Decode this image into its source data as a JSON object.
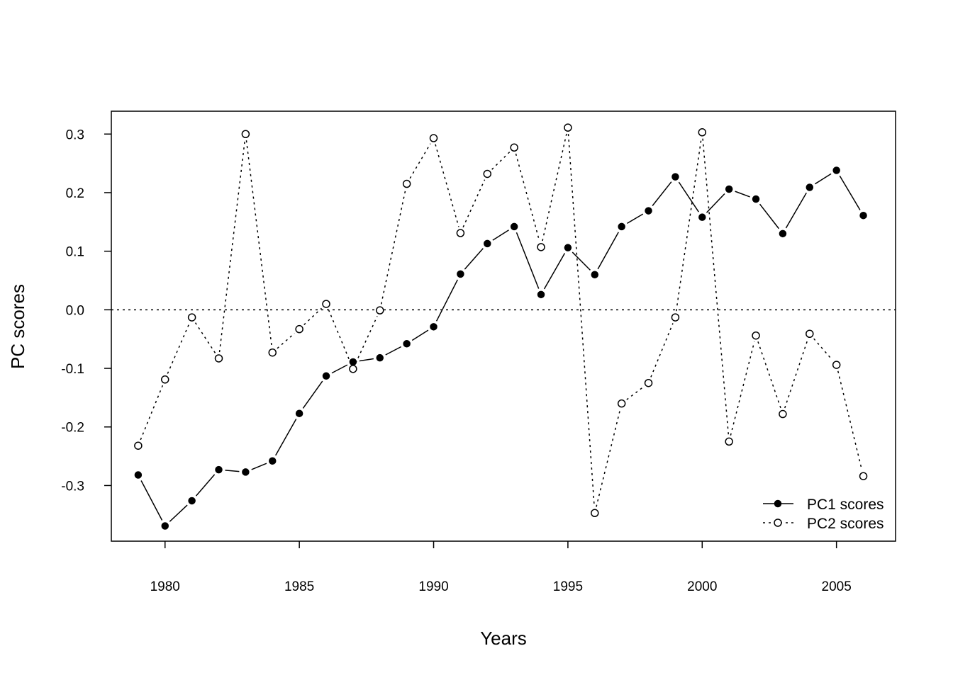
{
  "chart_data": {
    "type": "line",
    "xlabel": "Years",
    "ylabel": "PC scores",
    "xlim": [
      1978,
      2007.2
    ],
    "ylim": [
      -0.395,
      0.339
    ],
    "x_ticks": [
      1980,
      1985,
      1990,
      1995,
      2000,
      2005
    ],
    "x_tick_labels": [
      "1980",
      "1985",
      "1990",
      "1995",
      "2000",
      "2005"
    ],
    "y_ticks": [
      -0.3,
      -0.2,
      -0.1,
      0.0,
      0.1,
      0.2,
      0.3
    ],
    "y_tick_labels": [
      "-0.3",
      "-0.2",
      "-0.1",
      "0.0",
      "0.1",
      "0.2",
      "0.3"
    ],
    "reference_line": {
      "y": 0.0,
      "style": "dotted"
    },
    "legend_position": "bottom-right",
    "x": [
      1979,
      1980,
      1981,
      1982,
      1983,
      1984,
      1985,
      1986,
      1987,
      1988,
      1989,
      1990,
      1991,
      1992,
      1993,
      1994,
      1995,
      1996,
      1997,
      1998,
      1999,
      2000,
      2001,
      2002,
      2003,
      2004,
      2005,
      2006
    ],
    "series": [
      {
        "name": "PC1 scores",
        "line_style": "solid",
        "marker": "filled-circle",
        "color": "#000000",
        "values": [
          -0.282,
          -0.369,
          -0.326,
          -0.273,
          -0.277,
          -0.258,
          -0.177,
          -0.113,
          -0.089,
          -0.082,
          -0.058,
          -0.029,
          0.061,
          0.113,
          0.142,
          0.026,
          0.106,
          0.06,
          0.142,
          0.169,
          0.227,
          0.158,
          0.206,
          0.189,
          0.13,
          0.209,
          0.238,
          0.161
        ]
      },
      {
        "name": "PC2 scores",
        "line_style": "dotted",
        "marker": "open-circle",
        "color": "#000000",
        "values": [
          -0.232,
          -0.119,
          -0.013,
          -0.083,
          0.3,
          -0.073,
          -0.033,
          0.01,
          -0.101,
          -0.001,
          0.215,
          0.293,
          0.131,
          0.232,
          0.277,
          0.107,
          0.311,
          -0.347,
          -0.16,
          -0.125,
          -0.013,
          0.303,
          -0.225,
          -0.044,
          -0.178,
          -0.041,
          -0.094,
          -0.284
        ]
      }
    ]
  }
}
